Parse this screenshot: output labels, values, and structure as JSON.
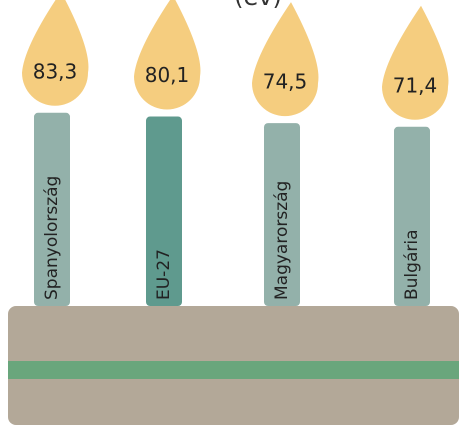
{
  "chart_data": {
    "type": "bar",
    "title": "(év)",
    "categories": [
      "Spanyolország",
      "EU-27",
      "Magyarország",
      "Bulgária"
    ],
    "values": [
      83.3,
      80.1,
      74.5,
      71.4
    ],
    "value_labels": [
      "83,3",
      "80,1",
      "74,5",
      "71,4"
    ],
    "colors": [
      "#93b1aa",
      "#5f9a8e",
      "#93b1aa",
      "#93b1aa"
    ],
    "flame_color": "#f5cd7f"
  }
}
